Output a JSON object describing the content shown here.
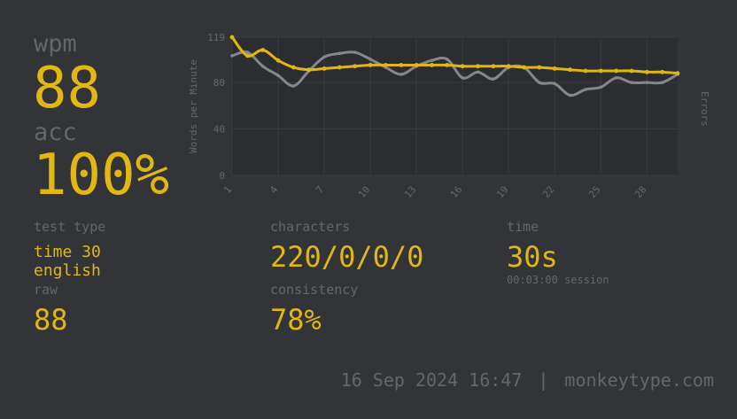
{
  "theme": {
    "bg": "#323437",
    "main": "#e2b714",
    "sub": "#646669",
    "chart-bg": "#2b2d30",
    "grid": "#3a3c3f",
    "raw": "#85878a"
  },
  "summary": {
    "wpm_label": "wpm",
    "wpm_value": "88",
    "acc_label": "acc",
    "acc_value": "100%"
  },
  "chart_data": {
    "type": "line",
    "x": [
      1,
      2,
      3,
      4,
      5,
      6,
      7,
      8,
      9,
      10,
      11,
      12,
      13,
      14,
      15,
      16,
      17,
      18,
      19,
      20,
      21,
      22,
      23,
      24,
      25,
      26,
      27,
      28,
      29,
      30
    ],
    "x_tick_labels": [
      1,
      4,
      7,
      10,
      13,
      16,
      19,
      22,
      25,
      28
    ],
    "y_ticks": [
      0,
      40,
      80,
      119
    ],
    "ylim": [
      0,
      119
    ],
    "ylabel": "Words per Minute",
    "ylabel_right": "Errors",
    "grid": true,
    "legend": "none",
    "series": [
      {
        "name": "wpm",
        "color": "#e2b714",
        "values": [
          119,
          103,
          108,
          99,
          93,
          91,
          92,
          93,
          94,
          95,
          95,
          95,
          95,
          95,
          95,
          94,
          94,
          94,
          94,
          93,
          93,
          92,
          91,
          90,
          90,
          90,
          90,
          89,
          89,
          88
        ]
      },
      {
        "name": "raw",
        "color": "#85878a",
        "values": [
          103,
          106,
          94,
          86,
          77,
          90,
          102,
          105,
          106,
          100,
          93,
          87,
          94,
          99,
          100,
          84,
          89,
          83,
          93,
          93,
          80,
          79,
          69,
          74,
          76,
          84,
          80,
          80,
          80,
          87
        ]
      }
    ]
  },
  "stats": {
    "test_type_label": "test type",
    "test_type_value1": "time 30",
    "test_type_value2": "english",
    "raw_label": "raw",
    "raw_value": "88",
    "characters_label": "characters",
    "characters_value": "220/0/0/0",
    "consistency_label": "consistency",
    "consistency_value": "78%",
    "time_label": "time",
    "time_value": "30s",
    "time_sub": "00:03:00 session"
  },
  "footer": {
    "date": "16 Sep 2024 16:47",
    "separator": "|",
    "site": "monkeytype.com"
  }
}
